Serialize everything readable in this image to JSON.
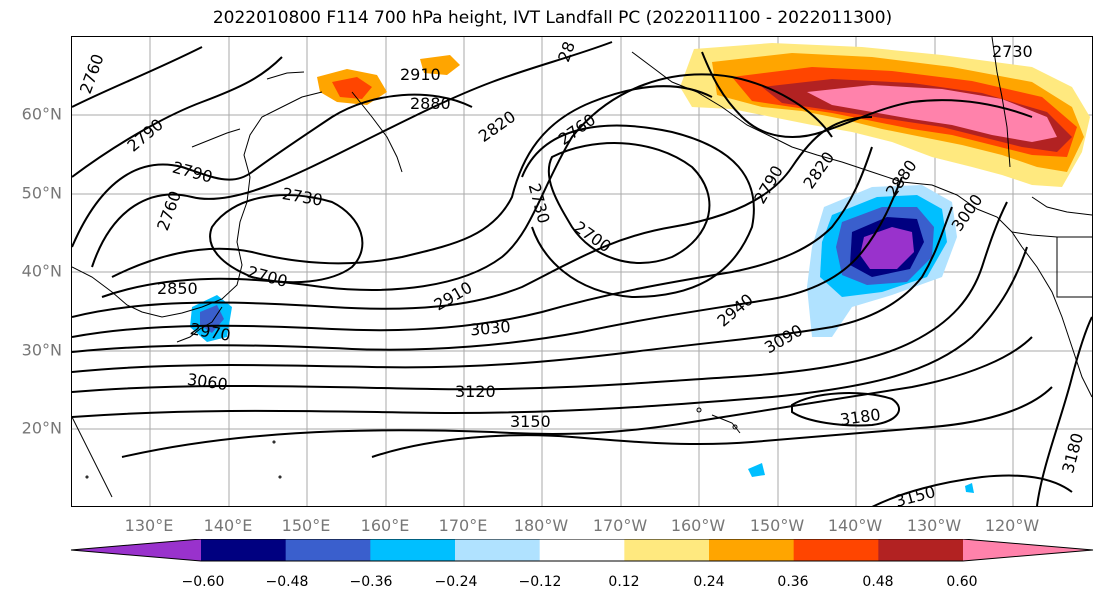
{
  "title": "2022010800 F114 700 hPa height, IVT Landfall PC (2022011100 - 2022011300)",
  "map": {
    "lat_labels": [
      "60°N",
      "50°N",
      "40°N",
      "30°N",
      "20°N"
    ],
    "lon_labels": [
      "130°E",
      "140°E",
      "150°E",
      "160°E",
      "170°E",
      "180°W",
      "170°W",
      "160°W",
      "150°W",
      "140°W",
      "130°W",
      "120°W"
    ],
    "contour_labels": [
      "2760",
      "2790",
      "2910",
      "2880",
      "2820",
      "2760",
      "2730",
      "2790",
      "2730",
      "2700",
      "2730",
      "2760",
      "2700",
      "2790",
      "2820",
      "2880",
      "3000",
      "2850",
      "2970",
      "2910",
      "2940",
      "3030",
      "3090",
      "3060",
      "3120",
      "3150",
      "3180",
      "3180",
      "3150",
      "28"
    ],
    "shading_colors": {
      "pos_light": "#ffe97f",
      "pos_med": "#ffa500",
      "pos_strong": "#ff4500",
      "pos_dark": "#b22222",
      "pos_max": "#ff82ab",
      "neg_light": "#b0e2ff",
      "neg_med": "#00bfff",
      "neg_strong": "#3a5fcd",
      "neg_dark": "#000080",
      "neg_max": "#9932cc"
    }
  },
  "colorbar": {
    "colors": [
      "#9932cc",
      "#000080",
      "#3a5fcd",
      "#00bfff",
      "#b0e2ff",
      "#ffffff",
      "#ffe97f",
      "#ffa500",
      "#ff4500",
      "#b22222",
      "#ff82ab"
    ],
    "tick_labels": [
      "−0.60",
      "−0.48",
      "−0.36",
      "−0.24",
      "−0.12",
      "0.12",
      "0.24",
      "0.36",
      "0.48",
      "0.60"
    ]
  }
}
